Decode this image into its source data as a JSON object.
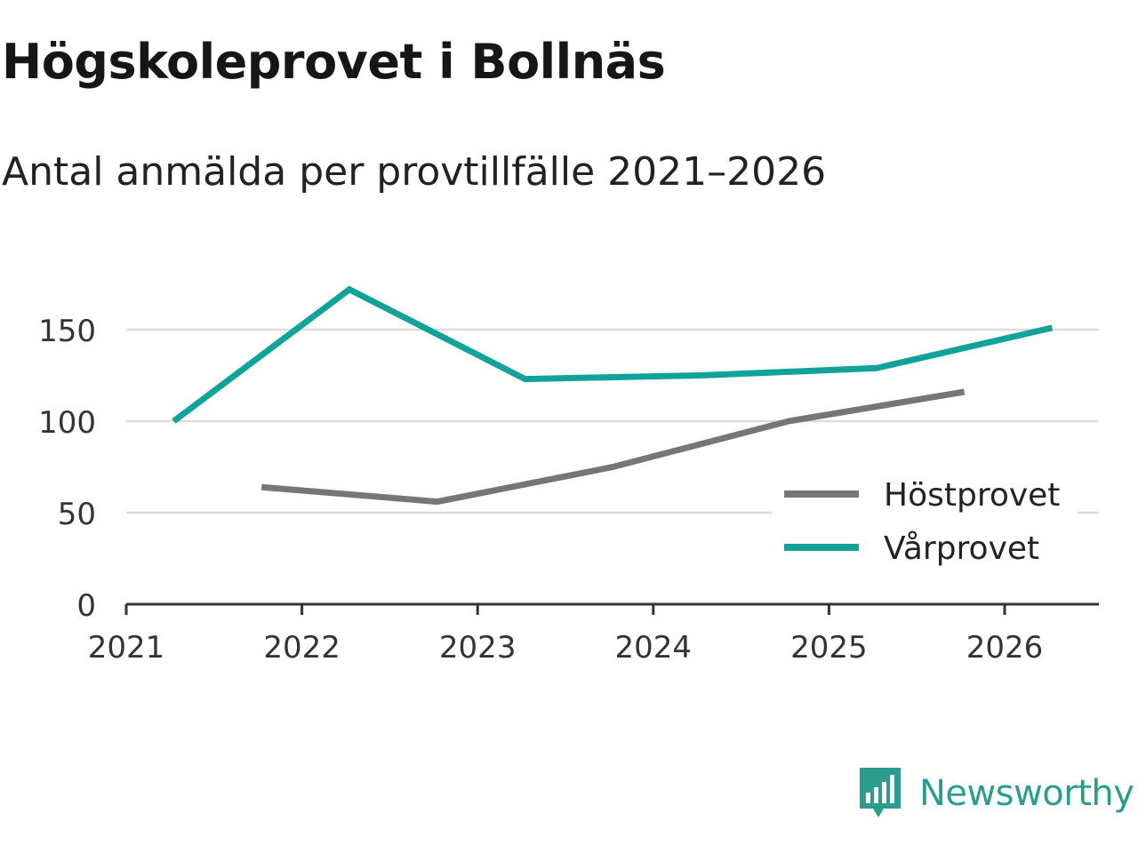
{
  "title": "Högskoleprovet i Bollnäs",
  "subtitle": "Antal anmälda per provtillfälle 2021–2026",
  "brand": {
    "name": "Newsworthy",
    "icon": "newsworthy-logo-icon",
    "color": "#2a9d8f"
  },
  "chart_data": {
    "type": "line",
    "title": "Högskoleprovet i Bollnäs",
    "subtitle": "Antal anmälda per provtillfälle 2021–2026",
    "xlabel": "",
    "ylabel": "",
    "xlim": [
      2021,
      2026.55
    ],
    "ylim": [
      0,
      175
    ],
    "x_ticks": [
      "2021",
      "2022",
      "2023",
      "2024",
      "2025",
      "2026"
    ],
    "y_ticks": [
      "0",
      "50",
      "100",
      "150"
    ],
    "grid": true,
    "legend_position": "bottom-right",
    "series": [
      {
        "name": "Höstprovet",
        "color": "#76757c",
        "x": [
          2021.77,
          2022.77,
          2023.77,
          2024.77,
          2025.77
        ],
        "values": [
          64,
          56,
          75,
          100,
          116
        ]
      },
      {
        "name": "Vårprovet",
        "color": "#12a29a",
        "x": [
          2021.27,
          2022.27,
          2023.27,
          2024.27,
          2025.27,
          2026.27
        ],
        "values": [
          100,
          172,
          123,
          125,
          129,
          151
        ]
      }
    ]
  }
}
